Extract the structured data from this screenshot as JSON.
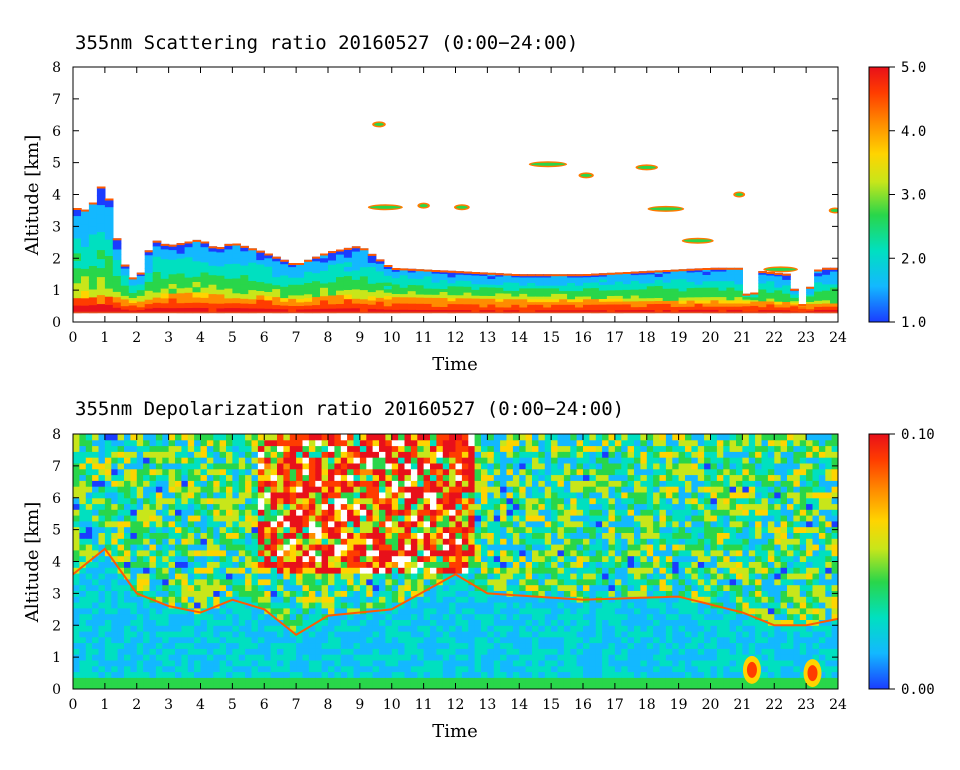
{
  "chart_data": [
    {
      "type": "heatmap",
      "title": "355nm Scattering ratio  20160527 (0:00−24:00)",
      "xlabel": "Time",
      "ylabel": "Altitude [km]",
      "xlim": [
        0,
        24
      ],
      "ylim": [
        0,
        8
      ],
      "x_ticks": [
        "0",
        "1",
        "2",
        "3",
        "4",
        "5",
        "6",
        "7",
        "8",
        "9",
        "10",
        "11",
        "12",
        "13",
        "14",
        "15",
        "16",
        "17",
        "18",
        "19",
        "20",
        "21",
        "22",
        "23",
        "24"
      ],
      "y_ticks": [
        "0",
        "1",
        "2",
        "3",
        "4",
        "5",
        "6",
        "7",
        "8"
      ],
      "colorbar": {
        "min": 1.0,
        "max": 5.0,
        "labels": [
          "5.0",
          "4.0",
          "3.0",
          "2.0",
          "1.0"
        ],
        "label_values": [
          5.0,
          4.0,
          3.0,
          2.0,
          1.0
        ]
      },
      "colormap": [
        "#1a3cff",
        "#13b8ff",
        "#00e0c0",
        "#29d64a",
        "#c8e61a",
        "#ffd400",
        "#ff8c00",
        "#ff3c00",
        "#e8101a"
      ],
      "features": {
        "reference_line_altitude_km": 0.3,
        "boundary_layer_top_km": [
          [
            0,
            3.6
          ],
          [
            0.5,
            3.5
          ],
          [
            1,
            4.5
          ],
          [
            1.5,
            2.0
          ],
          [
            2,
            1.2
          ],
          [
            2.5,
            2.6
          ],
          [
            3,
            2.4
          ],
          [
            4,
            2.6
          ],
          [
            4.5,
            2.3
          ],
          [
            5,
            2.5
          ],
          [
            6,
            2.2
          ],
          [
            7,
            1.8
          ],
          [
            7.5,
            2.0
          ],
          [
            8,
            2.2
          ],
          [
            9,
            2.4
          ],
          [
            10,
            1.7
          ],
          [
            12,
            1.6
          ],
          [
            14,
            1.5
          ],
          [
            16,
            1.5
          ],
          [
            18,
            1.6
          ],
          [
            20,
            1.7
          ],
          [
            21,
            1.7
          ],
          [
            21.2,
            0.4
          ],
          [
            21.6,
            1.6
          ],
          [
            22.5,
            1.5
          ],
          [
            22.8,
            0.4
          ],
          [
            23.4,
            1.7
          ],
          [
            24,
            1.7
          ]
        ],
        "aerosol_layer_top_km": [
          [
            0,
            1.0
          ],
          [
            1,
            1.0
          ],
          [
            2,
            0.7
          ],
          [
            3,
            1.0
          ],
          [
            5,
            0.9
          ],
          [
            7,
            0.8
          ],
          [
            8,
            0.9
          ],
          [
            10,
            0.85
          ],
          [
            12,
            0.8
          ],
          [
            14,
            0.8
          ],
          [
            16,
            0.75
          ],
          [
            18,
            0.75
          ],
          [
            20,
            0.7
          ],
          [
            21,
            0.7
          ],
          [
            24,
            0.6
          ]
        ],
        "cloud_patches": [
          {
            "t": 9.6,
            "alt": 6.2
          },
          {
            "t": 9.8,
            "alt": 3.6
          },
          {
            "t": 11.0,
            "alt": 3.65
          },
          {
            "t": 12.2,
            "alt": 3.6
          },
          {
            "t": 14.9,
            "alt": 4.95
          },
          {
            "t": 16.1,
            "alt": 4.6
          },
          {
            "t": 18.0,
            "alt": 4.85
          },
          {
            "t": 18.6,
            "alt": 3.55
          },
          {
            "t": 19.6,
            "alt": 2.55
          },
          {
            "t": 20.9,
            "alt": 4.0
          },
          {
            "t": 22.2,
            "alt": 1.65
          },
          {
            "t": 23.9,
            "alt": 3.5
          }
        ]
      }
    },
    {
      "type": "heatmap",
      "title": "355nm Depolarization ratio  20160527 (0:00−24:00)",
      "xlabel": "Time",
      "ylabel": "Altitude [km]",
      "xlim": [
        0,
        24
      ],
      "ylim": [
        0,
        8
      ],
      "x_ticks": [
        "0",
        "1",
        "2",
        "3",
        "4",
        "5",
        "6",
        "7",
        "8",
        "9",
        "10",
        "11",
        "12",
        "13",
        "14",
        "15",
        "16",
        "17",
        "18",
        "19",
        "20",
        "21",
        "22",
        "23",
        "24"
      ],
      "y_ticks": [
        "0",
        "1",
        "2",
        "3",
        "4",
        "5",
        "6",
        "7",
        "8"
      ],
      "colorbar": {
        "min": 0.0,
        "max": 0.1,
        "labels": [
          "0.10",
          "0.00"
        ],
        "label_values": [
          0.1,
          0.0
        ]
      },
      "colormap": [
        "#1a3cff",
        "#13b8ff",
        "#00e0c0",
        "#29d64a",
        "#c8e61a",
        "#ffd400",
        "#ff8c00",
        "#ff3c00",
        "#e8101a"
      ],
      "features": {
        "noisy_high_depol_region": {
          "t_start": 5.8,
          "t_end": 12.5,
          "alt_start": 3.6,
          "alt_end": 8
        },
        "boundary_layer_top_km": [
          [
            0,
            3.6
          ],
          [
            1,
            4.4
          ],
          [
            2,
            3.0
          ],
          [
            3,
            2.6
          ],
          [
            4,
            2.4
          ],
          [
            5,
            2.8
          ],
          [
            6,
            2.5
          ],
          [
            7,
            1.7
          ],
          [
            8,
            2.3
          ],
          [
            9,
            2.4
          ],
          [
            10,
            2.5
          ],
          [
            12,
            3.6
          ],
          [
            13,
            3.0
          ],
          [
            16,
            2.8
          ],
          [
            19,
            2.9
          ],
          [
            21,
            2.4
          ],
          [
            22,
            2.0
          ],
          [
            23,
            2.0
          ],
          [
            24,
            2.2
          ]
        ],
        "depolarization_hotspots": [
          {
            "t": 21.3,
            "alt": 0.6
          },
          {
            "t": 23.2,
            "alt": 0.5
          }
        ]
      }
    }
  ]
}
